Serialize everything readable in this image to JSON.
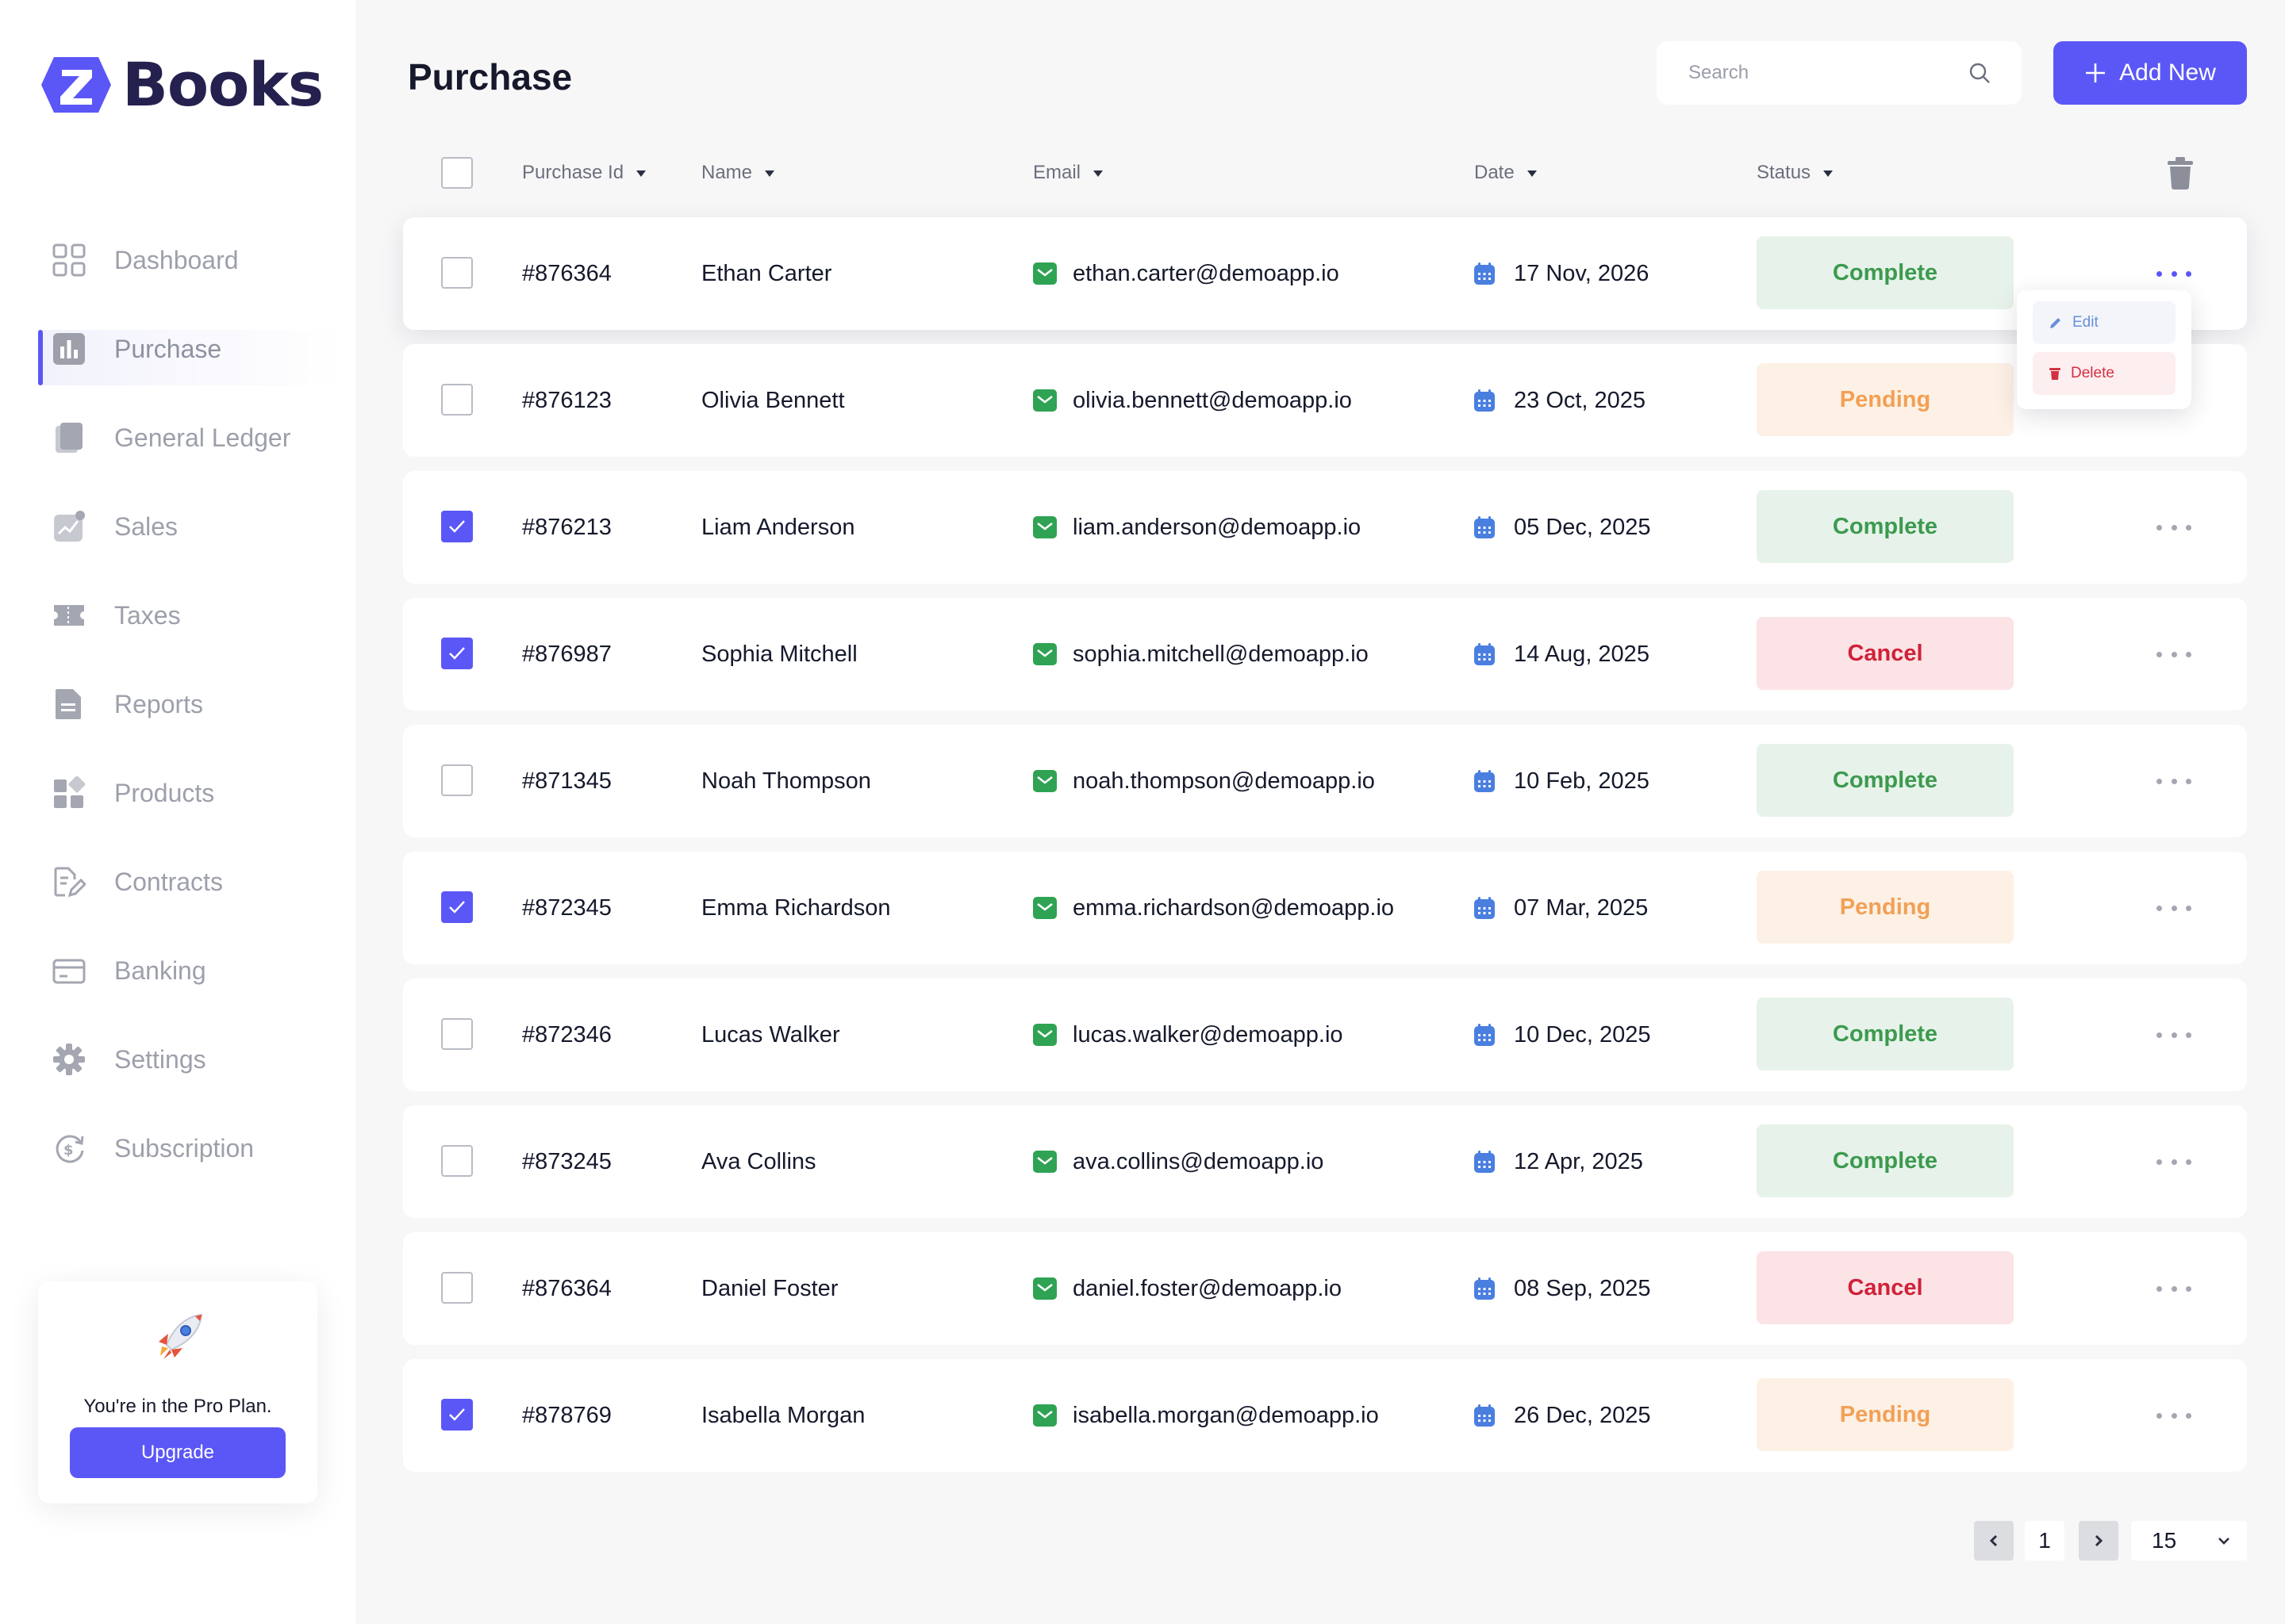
{
  "app": {
    "logo_text": "Books"
  },
  "sidebar": {
    "items": [
      {
        "label": "Dashboard",
        "icon": "dashboard-icon",
        "active": false
      },
      {
        "label": "Purchase",
        "icon": "bar-chart-icon",
        "active": true
      },
      {
        "label": "General Ledger",
        "icon": "ledger-icon",
        "active": false
      },
      {
        "label": "Sales",
        "icon": "sales-chart-icon",
        "active": false
      },
      {
        "label": "Taxes",
        "icon": "ticket-icon",
        "active": false
      },
      {
        "label": "Reports",
        "icon": "report-icon",
        "active": false
      },
      {
        "label": "Products",
        "icon": "products-icon",
        "active": false
      },
      {
        "label": "Contracts",
        "icon": "contract-icon",
        "active": false
      },
      {
        "label": "Banking",
        "icon": "credit-card-icon",
        "active": false
      },
      {
        "label": "Settings",
        "icon": "gear-icon",
        "active": false
      },
      {
        "label": "Subscription",
        "icon": "subscription-icon",
        "active": false
      }
    ],
    "pro_card": {
      "text": "You're in the Pro Plan.",
      "button": "Upgrade",
      "icon": "rocket-icon"
    }
  },
  "header": {
    "title": "Purchase",
    "search": {
      "placeholder": "Search",
      "value": ""
    },
    "add_button": "Add New"
  },
  "table": {
    "columns": [
      "Purchase Id",
      "Name",
      "Email",
      "Date",
      "Status"
    ],
    "rows": [
      {
        "id": "#876364",
        "name": "Ethan Carter",
        "email": "ethan.carter@demoapp.io",
        "date": "17 Nov, 2026",
        "status": "Complete",
        "checked": false
      },
      {
        "id": "#876123",
        "name": "Olivia Bennett",
        "email": "olivia.bennett@demoapp.io",
        "date": "23 Oct, 2025",
        "status": "Pending",
        "checked": false
      },
      {
        "id": "#876213",
        "name": "Liam Anderson",
        "email": "liam.anderson@demoapp.io",
        "date": "05 Dec, 2025",
        "status": "Complete",
        "checked": true
      },
      {
        "id": "#876987",
        "name": "Sophia Mitchell",
        "email": "sophia.mitchell@demoapp.io",
        "date": "14 Aug, 2025",
        "status": "Cancel",
        "checked": true
      },
      {
        "id": "#871345",
        "name": "Noah Thompson",
        "email": "noah.thompson@demoapp.io",
        "date": "10 Feb, 2025",
        "status": "Complete",
        "checked": false
      },
      {
        "id": "#872345",
        "name": "Emma Richardson",
        "email": "emma.richardson@demoapp.io",
        "date": "07 Mar, 2025",
        "status": "Pending",
        "checked": true
      },
      {
        "id": "#872346",
        "name": "Lucas Walker",
        "email": "lucas.walker@demoapp.io",
        "date": "10 Dec, 2025",
        "status": "Complete",
        "checked": false
      },
      {
        "id": "#873245",
        "name": "Ava Collins",
        "email": "ava.collins@demoapp.io",
        "date": "12 Apr, 2025",
        "status": "Complete",
        "checked": false
      },
      {
        "id": "#876364",
        "name": "Daniel Foster",
        "email": "daniel.foster@demoapp.io",
        "date": "08 Sep, 2025",
        "status": "Cancel",
        "checked": false
      },
      {
        "id": "#878769",
        "name": "Isabella Morgan",
        "email": "isabella.morgan@demoapp.io",
        "date": "26 Dec, 2025",
        "status": "Pending",
        "checked": true
      }
    ],
    "row_menu": {
      "edit": "Edit",
      "delete": "Delete"
    }
  },
  "status_colors": {
    "Complete": {
      "bg": "#e7f3ea",
      "fg": "#3c9a4f"
    },
    "Pending": {
      "bg": "#fdf1e6",
      "fg": "#f2a055"
    },
    "Cancel": {
      "bg": "#fbe3e6",
      "fg": "#d02138"
    }
  },
  "pagination": {
    "current_page": "1",
    "per_page": "15"
  },
  "colors": {
    "accent": "#5b57f6",
    "email_icon": "#2fa353",
    "calendar_icon": "#4a7fe0"
  }
}
